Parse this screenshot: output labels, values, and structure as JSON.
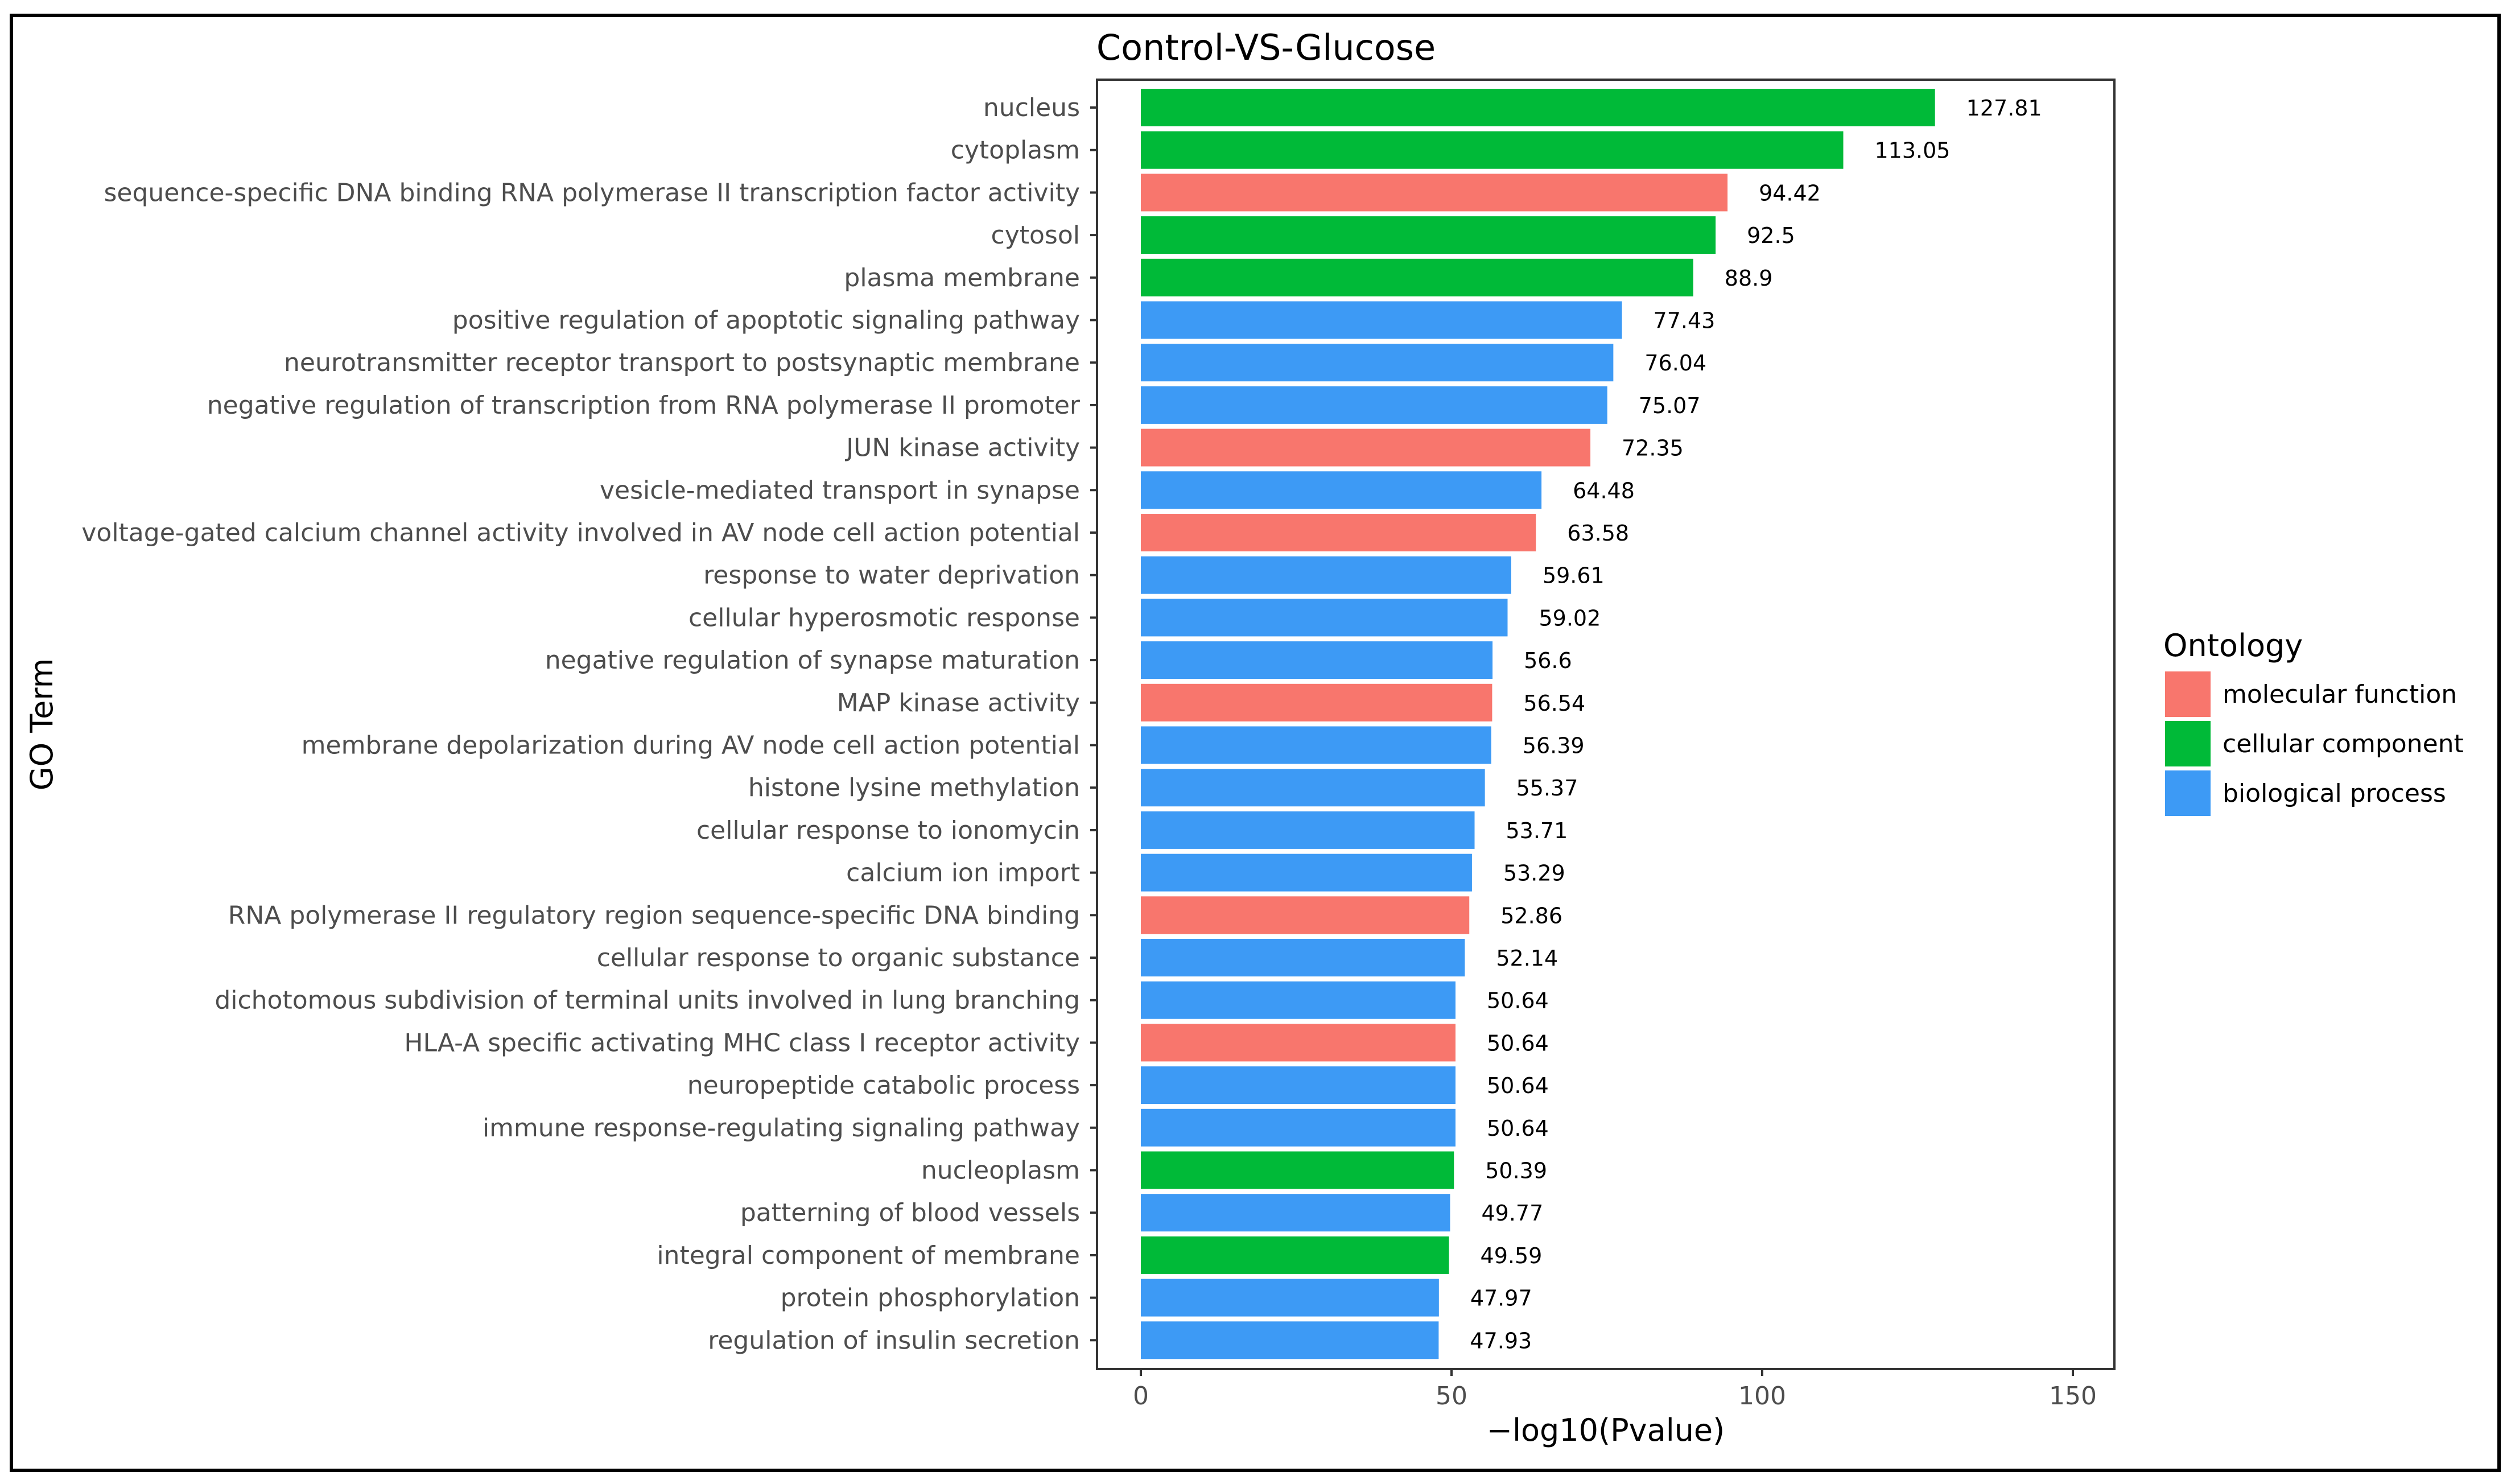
{
  "chart_data": {
    "type": "bar",
    "orientation": "horizontal",
    "title": "Control-VS-Glucose",
    "xlabel": "−log10(Pvalue)",
    "ylabel": "GO Term",
    "xlim": [
      -7.5,
      155
    ],
    "xticks": [
      0,
      50,
      100,
      150
    ],
    "grid": false,
    "legend_position": "right",
    "legend": {
      "title": "Ontology",
      "entries": [
        {
          "key": "mf",
          "label": "molecular function",
          "color": "#F8766D"
        },
        {
          "key": "cc",
          "label": "cellular component",
          "color": "#00BA38"
        },
        {
          "key": "bp",
          "label": "biological process",
          "color": "#3D9AF5"
        }
      ]
    },
    "categories": [
      "nucleus",
      "cytoplasm",
      "sequence-specific DNA binding RNA polymerase II transcription factor activity",
      "cytosol",
      "plasma membrane",
      "positive regulation of apoptotic signaling pathway",
      "neurotransmitter receptor transport to postsynaptic membrane",
      "negative regulation of transcription from RNA polymerase II promoter",
      "JUN kinase activity",
      "vesicle-mediated transport in synapse",
      "voltage-gated calcium channel activity involved in AV node cell action potential",
      "response to water deprivation",
      "cellular hyperosmotic response",
      "negative regulation of synapse maturation",
      "MAP kinase activity",
      "membrane depolarization during AV node cell action potential",
      "histone lysine methylation",
      "cellular response to ionomycin",
      "calcium ion import",
      "RNA polymerase II regulatory region sequence-specific DNA binding",
      "cellular response to organic substance",
      "dichotomous subdivision of terminal units involved in lung branching",
      "HLA-A specific activating MHC class I receptor activity",
      "neuropeptide catabolic process",
      "immune response-regulating signaling pathway",
      "nucleoplasm",
      "patterning of blood vessels",
      "integral component of membrane",
      "protein phosphorylation",
      "regulation of insulin secretion"
    ],
    "values": [
      127.81,
      113.05,
      94.42,
      92.5,
      88.9,
      77.43,
      76.04,
      75.07,
      72.35,
      64.48,
      63.58,
      59.61,
      59.02,
      56.6,
      56.54,
      56.39,
      55.37,
      53.71,
      53.29,
      52.86,
      52.14,
      50.64,
      50.64,
      50.64,
      50.64,
      50.39,
      49.77,
      49.59,
      47.97,
      47.93
    ],
    "value_labels": [
      "127.81",
      "113.05",
      "94.42",
      "92.5",
      "88.9",
      "77.43",
      "76.04",
      "75.07",
      "72.35",
      "64.48",
      "63.58",
      "59.61",
      "59.02",
      "56.6",
      "56.54",
      "56.39",
      "55.37",
      "53.71",
      "53.29",
      "52.86",
      "52.14",
      "50.64",
      "50.64",
      "50.64",
      "50.64",
      "50.39",
      "49.77",
      "49.59",
      "47.97",
      "47.93"
    ],
    "ontology": [
      "cc",
      "cc",
      "mf",
      "cc",
      "cc",
      "bp",
      "bp",
      "bp",
      "mf",
      "bp",
      "mf",
      "bp",
      "bp",
      "bp",
      "mf",
      "bp",
      "bp",
      "bp",
      "bp",
      "mf",
      "bp",
      "bp",
      "mf",
      "bp",
      "bp",
      "cc",
      "bp",
      "cc",
      "bp",
      "bp"
    ]
  }
}
